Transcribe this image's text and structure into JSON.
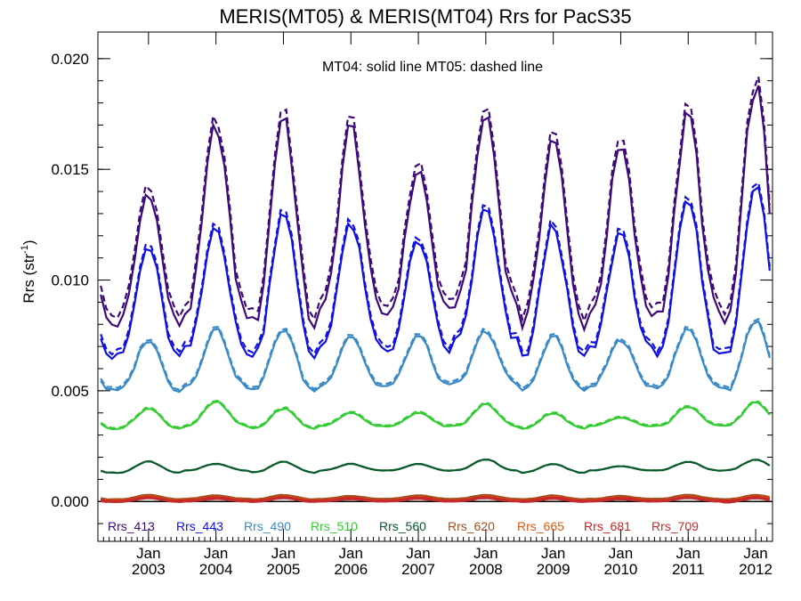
{
  "chart_data": {
    "type": "line",
    "title": "MERIS(MT05) & MERIS(MT04)  Rrs for PacS35",
    "subtitle": "MT04: solid line   MT05: dashed line",
    "ylabel": "Rrs (str",
    "ylabel_sup": "-1",
    "ylabel_close": ")",
    "xlabel": "",
    "ylim": [
      -0.0018,
      0.0212
    ],
    "xlim": [
      2002.25,
      2012.25
    ],
    "yticks": [
      "0.000",
      "0.005",
      "0.010",
      "0.015",
      "0.020"
    ],
    "ytick_values": [
      0.0,
      0.005,
      0.01,
      0.015,
      0.02
    ],
    "xticks_top": [
      "Jan",
      "Jan",
      "Jan",
      "Jan",
      "Jan",
      "Jan",
      "Jan",
      "Jan",
      "Jan",
      "Jan"
    ],
    "xticks_bottom": [
      "2003",
      "2004",
      "2005",
      "2006",
      "2007",
      "2008",
      "2009",
      "2010",
      "2011",
      "2012"
    ],
    "xtick_values": [
      2003,
      2004,
      2005,
      2006,
      2007,
      2008,
      2009,
      2010,
      2011,
      2012
    ],
    "zero_line": true,
    "series_styles": [
      "MT04 solid",
      "MT05 dashed"
    ],
    "series": [
      {
        "name": "Rrs_413",
        "color": "#3d0a7a",
        "base": 0.0105,
        "amp": 0.0045,
        "peak": [
          0.014,
          0.017,
          0.0175,
          0.017,
          0.015,
          0.0175,
          0.0165,
          0.016,
          0.0175,
          0.0188
        ],
        "trough": [
          0.008,
          0.0085,
          0.008,
          0.0085,
          0.0085,
          0.009,
          0.008,
          0.0085,
          0.0085,
          0.008
        ],
        "dash_offset": 0.0004
      },
      {
        "name": "Rrs_443",
        "color": "#1010e0",
        "peak": [
          0.0115,
          0.0125,
          0.0132,
          0.0125,
          0.0118,
          0.0132,
          0.0125,
          0.0122,
          0.0135,
          0.0145
        ],
        "trough": [
          0.0065,
          0.0068,
          0.0065,
          0.007,
          0.0068,
          0.0072,
          0.0065,
          0.0068,
          0.0068,
          0.0065
        ],
        "dash_offset": 0.0002
      },
      {
        "name": "Rrs_490",
        "color": "#3a8ac8",
        "peak": [
          0.0073,
          0.0078,
          0.0078,
          0.0075,
          0.0075,
          0.0077,
          0.0075,
          0.0073,
          0.0078,
          0.0082
        ],
        "trough": [
          0.005,
          0.0052,
          0.005,
          0.0052,
          0.0052,
          0.0053,
          0.005,
          0.0052,
          0.0052,
          0.005
        ],
        "dash_offset": 0.0001
      },
      {
        "name": "Rrs_510",
        "color": "#33cc33",
        "peak": [
          0.0042,
          0.0045,
          0.0042,
          0.004,
          0.004,
          0.0044,
          0.004,
          0.0038,
          0.0043,
          0.0045
        ],
        "trough": [
          0.0033,
          0.0034,
          0.0033,
          0.0034,
          0.0034,
          0.0034,
          0.0033,
          0.0034,
          0.0034,
          0.0034
        ],
        "dash_offset": 5e-05
      },
      {
        "name": "Rrs_560",
        "color": "#0a5a2a",
        "peak": [
          0.0018,
          0.0017,
          0.0018,
          0.0017,
          0.0017,
          0.0019,
          0.0017,
          0.0016,
          0.0018,
          0.0019
        ],
        "trough": [
          0.0013,
          0.0014,
          0.0013,
          0.0014,
          0.0014,
          0.0014,
          0.0013,
          0.0014,
          0.0014,
          0.0014
        ],
        "dash_offset": 0.0
      },
      {
        "name": "Rrs_620",
        "color": "#a05020",
        "peak": [
          0.0003,
          0.00028,
          0.0003,
          0.00025,
          0.00028,
          0.0003,
          0.00028,
          0.00025,
          0.0003,
          0.0003
        ],
        "trough": [
          0.0001,
          0.00012,
          0.0001,
          0.00012,
          0.00012,
          0.00012,
          0.0001,
          0.00012,
          0.00012,
          0.0001
        ],
        "dash_offset": 0.0
      },
      {
        "name": "Rrs_665",
        "color": "#e05a10",
        "peak": [
          0.00022,
          0.0002,
          0.00022,
          0.00018,
          0.0002,
          0.00022,
          0.0002,
          0.00018,
          0.00022,
          0.00022
        ],
        "trough": [
          5e-05,
          6e-05,
          5e-05,
          6e-05,
          6e-05,
          6e-05,
          5e-05,
          6e-05,
          6e-05,
          5e-05
        ],
        "dash_offset": 0.0
      },
      {
        "name": "Rrs_681",
        "color": "#d02020",
        "peak": [
          0.0002,
          0.00018,
          0.0002,
          0.00016,
          0.00018,
          0.0002,
          0.00018,
          0.00016,
          0.0002,
          0.0002
        ],
        "trough": [
          3e-05,
          4e-05,
          3e-05,
          4e-05,
          4e-05,
          4e-05,
          3e-05,
          4e-05,
          4e-05,
          3e-05
        ],
        "dash_offset": 0.0
      },
      {
        "name": "Rrs_709",
        "color": "#c03030",
        "peak": [
          0.00015,
          0.00012,
          0.00015,
          0.0001,
          0.00012,
          0.00015,
          0.00012,
          0.0001,
          0.00015,
          0.00015
        ],
        "trough": [
          -2e-05,
          0.0,
          -2e-05,
          0.0,
          0.0,
          0.0,
          -2e-05,
          0.0,
          0.0,
          -5e-05
        ],
        "dash_offset": 0.0
      }
    ]
  }
}
